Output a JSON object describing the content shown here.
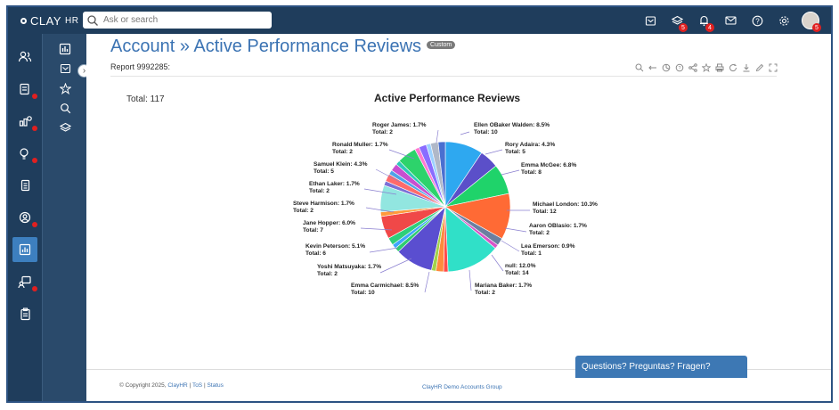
{
  "app": {
    "logo_text": "CLAY",
    "logo_suffix": "HR"
  },
  "search": {
    "placeholder": "Ask or search",
    "value": ""
  },
  "topbar": {
    "icons": [
      {
        "name": "inbox-icon",
        "glyph": "✉",
        "badge": ""
      },
      {
        "name": "layers-icon",
        "glyph": "≋",
        "badge": "5"
      },
      {
        "name": "bell-icon",
        "glyph": "🔔",
        "badge": "4"
      },
      {
        "name": "mail-icon",
        "glyph": "✉",
        "badge": ""
      },
      {
        "name": "help-icon",
        "glyph": "?",
        "badge": ""
      },
      {
        "name": "gear-icon",
        "glyph": "⚙",
        "badge": ""
      }
    ],
    "avatar_badge": "5"
  },
  "sidebar": {
    "items": [
      {
        "name": "people-icon",
        "glyph": "👥",
        "dot": false,
        "active": false
      },
      {
        "name": "id-card-icon",
        "glyph": "🪪",
        "dot": true,
        "active": false
      },
      {
        "name": "money-icon",
        "glyph": "💰",
        "dot": true,
        "active": false
      },
      {
        "name": "lightbulb-icon",
        "glyph": "💡",
        "dot": true,
        "active": false
      },
      {
        "name": "document-icon",
        "glyph": "📄",
        "dot": false,
        "active": false
      },
      {
        "name": "user-circle-icon",
        "glyph": "👤",
        "dot": true,
        "active": false
      },
      {
        "name": "reports-icon",
        "glyph": "📊",
        "dot": false,
        "active": true
      },
      {
        "name": "training-icon",
        "glyph": "📋",
        "dot": true,
        "active": false
      },
      {
        "name": "clipboard-icon",
        "glyph": "📋",
        "dot": false,
        "active": false
      }
    ]
  },
  "subnav": {
    "items": [
      {
        "name": "bar-chart-icon",
        "glyph": "▥"
      },
      {
        "name": "inbox-icon",
        "glyph": "✉"
      },
      {
        "name": "star-icon",
        "glyph": "☆"
      },
      {
        "name": "search-icon",
        "glyph": "⌕"
      },
      {
        "name": "layers-icon",
        "glyph": "≋"
      }
    ]
  },
  "page": {
    "title": "Account » Active Performance Reviews",
    "badge": "Custom",
    "report_id": "Report 9992285:",
    "total_label": "Total: 117"
  },
  "chart_data": {
    "type": "pie",
    "title": "Active Performance Reviews",
    "labels": [
      {
        "text1": "Ellen OBaker Walden: 8.5%",
        "text2": "Total: 10"
      },
      {
        "text1": "Rory Adaira: 4.3%",
        "text2": "Total: 5"
      },
      {
        "text1": "Emma McGee: 6.8%",
        "text2": "Total: 8"
      },
      {
        "text1": "Michael London: 10.3%",
        "text2": "Total: 12"
      },
      {
        "text1": "Aaron OBlasio: 1.7%",
        "text2": "Total: 2"
      },
      {
        "text1": "Lea Emerson: 0.9%",
        "text2": "Total: 1"
      },
      {
        "text1": "null: 12.0%",
        "text2": "Total: 14"
      },
      {
        "text1": "Mariana Baker: 1.7%",
        "text2": "Total: 2"
      },
      {
        "text1": "Emma Carmichael: 8.5%",
        "text2": "Total: 10"
      },
      {
        "text1": "Yoshi Matsuyaka: 1.7%",
        "text2": "Total: 2"
      },
      {
        "text1": "Kevin Peterson: 5.1%",
        "text2": "Total: 6"
      },
      {
        "text1": "Jane Hopper: 6.0%",
        "text2": "Total: 7"
      },
      {
        "text1": "Steve Harmison: 1.7%",
        "text2": "Total: 2"
      },
      {
        "text1": "Ethan Laker: 1.7%",
        "text2": "Total: 2"
      },
      {
        "text1": "Samuel Klein: 4.3%",
        "text2": "Total: 5"
      },
      {
        "text1": "Ronald Muller: 1.7%",
        "text2": "Total: 2"
      },
      {
        "text1": "Roger James: 1.7%",
        "text2": "Total: 2"
      }
    ],
    "slices": [
      {
        "name": "Ellen OBaker Walden",
        "pct": 8.5,
        "total": 10,
        "color": "#2ea8f0"
      },
      {
        "name": "Rory Adaira",
        "pct": 4.3,
        "total": 5,
        "color": "#5b4fc9"
      },
      {
        "name": "Emma McGee",
        "pct": 6.8,
        "total": 8,
        "color": "#1fd36a"
      },
      {
        "name": "Michael London",
        "pct": 10.3,
        "total": 12,
        "color": "#ff6a35"
      },
      {
        "name": "Aaron OBlasio",
        "pct": 1.7,
        "total": 2,
        "color": "#6a7fa0"
      },
      {
        "name": "Lea Emerson",
        "pct": 0.9,
        "total": 1,
        "color": "#d855c8"
      },
      {
        "name": "null",
        "pct": 12.0,
        "total": 14,
        "color": "#30e0c8"
      },
      {
        "name": "(unlabeled)",
        "pct": 1.0,
        "total": null,
        "color": "#ff4a4a"
      },
      {
        "name": "Mariana Baker",
        "pct": 1.7,
        "total": 2,
        "color": "#ff8a3c"
      },
      {
        "name": "(unlabeled)",
        "pct": 1.0,
        "total": null,
        "color": "#a2d24a"
      },
      {
        "name": "Emma Carmichael",
        "pct": 8.5,
        "total": 10,
        "color": "#5a4ed0"
      },
      {
        "name": "(unlabeled)",
        "pct": 1.0,
        "total": null,
        "color": "#2ecc71"
      },
      {
        "name": "(unlabeled)",
        "pct": 1.0,
        "total": null,
        "color": "#3da5ff"
      },
      {
        "name": "Yoshi Matsuyaka",
        "pct": 1.7,
        "total": 2,
        "color": "#2ecf7a"
      },
      {
        "name": "Kevin Peterson",
        "pct": 5.1,
        "total": 6,
        "color": "#f04848"
      },
      {
        "name": "(unlabeled)",
        "pct": 1.0,
        "total": null,
        "color": "#ff9a3c"
      },
      {
        "name": "Jane Hopper",
        "pct": 6.0,
        "total": 7,
        "color": "#92e6e0"
      },
      {
        "name": "(unlabeled)",
        "pct": 1.0,
        "total": null,
        "color": "#7b6fd6"
      },
      {
        "name": "Steve Harmison",
        "pct": 1.7,
        "total": 2,
        "color": "#ff6a6a"
      },
      {
        "name": "(unlabeled)",
        "pct": 1.0,
        "total": null,
        "color": "#4fa3e8"
      },
      {
        "name": "Ethan Laker",
        "pct": 1.7,
        "total": 2,
        "color": "#c84fd0"
      },
      {
        "name": "(unlabeled)",
        "pct": 1.0,
        "total": null,
        "color": "#2ec8b8"
      },
      {
        "name": "Samuel Klein",
        "pct": 4.3,
        "total": 5,
        "color": "#2dd36b"
      },
      {
        "name": "(unlabeled)",
        "pct": 1.0,
        "total": null,
        "color": "#ff7ad0"
      },
      {
        "name": "Ronald Muller",
        "pct": 1.7,
        "total": 2,
        "color": "#8a6cff"
      },
      {
        "name": "(unlabeled)",
        "pct": 1.0,
        "total": null,
        "color": "#9cd1ff"
      },
      {
        "name": "Roger James",
        "pct": 1.7,
        "total": 2,
        "color": "#b0b8c8"
      },
      {
        "name": "(unlabeled)",
        "pct": 1.6,
        "total": null,
        "color": "#4a6fd0"
      }
    ]
  },
  "footer": {
    "copyright": "© Copyright 2025,",
    "link_clayhr": "ClayHR",
    "sep": "|",
    "link_tos": "ToS",
    "link_status": "Status",
    "group": "ClayHR Demo Accounts Group"
  },
  "help_button": "Questions? Preguntas? Fragen?"
}
